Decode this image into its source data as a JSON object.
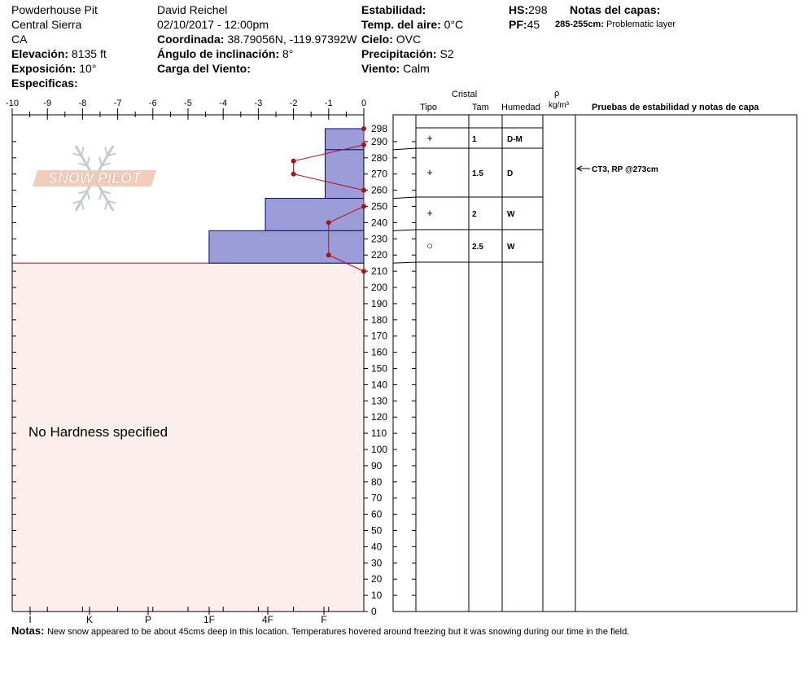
{
  "header": {
    "pit_name": "Powderhouse Pit",
    "range": "Central Sierra",
    "state": "CA",
    "elevation_label": "Elevación:",
    "elevation_value": "8135 ft",
    "aspect_label": "Exposición:",
    "aspect_value": "10°",
    "specifics_label": "Especificas:",
    "observer": "David Reichel",
    "datetime": "02/10/2017 - 12:00pm",
    "coord_label": "Coordinada:",
    "coord_value": "38.79056N, -119.97392W",
    "slope_label": "Ángulo de inclinación:",
    "slope_value": "8°",
    "wind_load_label": "Carga del Viento:",
    "stability_label": "Estabilidad:",
    "air_temp_label": "Temp. del aire:",
    "air_temp_value": "0°C",
    "sky_label": "Cielo:",
    "sky_value": "OVC",
    "precip_label": "Precipitación:",
    "precip_value": "S2",
    "wind_label": "Viento:",
    "wind_value": "Calm",
    "hs_label": "HS:",
    "hs_value": "298",
    "pf_label": "PF:",
    "pf_value": "45",
    "layer_notes_label": "Notas del capas:",
    "layer_note_range": "285-255cm:",
    "layer_note_text": "Problematic layer"
  },
  "table_headers": {
    "cristal": "Cristal",
    "tipo": "Tipo",
    "tam": "Tam",
    "humedad": "Humedad",
    "rho": "ρ",
    "density_unit": "kg/m³",
    "tests": "Pruebas de estabilidad y notas de capa"
  },
  "logo_text": "SNOW PILOT",
  "no_hardness": "No Hardness specified",
  "notes_label": "Notas:",
  "notes_text": "New snow appeared to be about 45cms deep in this location. Temperatures hovered around freezing but it was snowing during our time in the field.",
  "chart_data": {
    "type": "bar",
    "orientation": "horizontal",
    "x_axis_top_ticks": [
      "-10",
      "-9",
      "-8",
      "-7",
      "-6",
      "-5",
      "-4",
      "-3",
      "-2",
      "-1",
      "0"
    ],
    "x_axis_top_range": [
      -10,
      0
    ],
    "x_axis_bottom_ticks": [
      "I",
      "K",
      "P",
      "1F",
      "4F",
      "F"
    ],
    "y_range": [
      0,
      298
    ],
    "y_ticks": [
      "298",
      "290",
      "280",
      "270",
      "260",
      "250",
      "240",
      "230",
      "220",
      "210",
      "200",
      "190",
      "180",
      "170",
      "160",
      "150",
      "140",
      "130",
      "120",
      "110",
      "100",
      "90",
      "80",
      "70",
      "60",
      "50",
      "40",
      "30",
      "20",
      "10",
      "0"
    ],
    "hardness_layers": [
      {
        "top": 298,
        "bottom": 285,
        "hardness_value": -1.1
      },
      {
        "top": 285,
        "bottom": 255,
        "hardness_value": -1.1
      },
      {
        "top": 255,
        "bottom": 235,
        "hardness_value": -2.8
      },
      {
        "top": 235,
        "bottom": 215,
        "hardness_value": -4.4
      }
    ],
    "no_hardness_below": 215,
    "temperature_profile": [
      {
        "height": 298,
        "temp": 0
      },
      {
        "height": 288,
        "temp": 0
      },
      {
        "height": 278,
        "temp": -2
      },
      {
        "height": 270,
        "temp": -2
      },
      {
        "height": 260,
        "temp": 0
      },
      {
        "height": 250,
        "temp": 0
      },
      {
        "height": 240,
        "temp": -1
      },
      {
        "height": 220,
        "temp": -1
      },
      {
        "height": 210,
        "temp": 0
      }
    ],
    "layers": [
      {
        "top": 298,
        "bottom": 285,
        "grain": "",
        "size": "",
        "moisture": ""
      },
      {
        "top": 285,
        "bottom": 255,
        "grain": "+",
        "size": "1",
        "moisture": "D-M"
      },
      {
        "top": 255,
        "bottom": 235,
        "grain": "+",
        "size": "1.5",
        "moisture": "D"
      },
      {
        "top": 235,
        "bottom": 215,
        "grain": "+",
        "size": "2",
        "moisture": "W"
      },
      {
        "top": 215,
        "bottom": 0,
        "grain": "○",
        "size": "2.5",
        "moisture": "W"
      }
    ],
    "stability_tests": [
      {
        "height": 273,
        "text": "CT3, RP @273cm"
      }
    ],
    "colors": {
      "hardness_fill": "#9c9cd9",
      "hardness_stroke": "#00008b",
      "no_hardness_fill": "#fdeeee",
      "temperature": "#b01010"
    }
  }
}
